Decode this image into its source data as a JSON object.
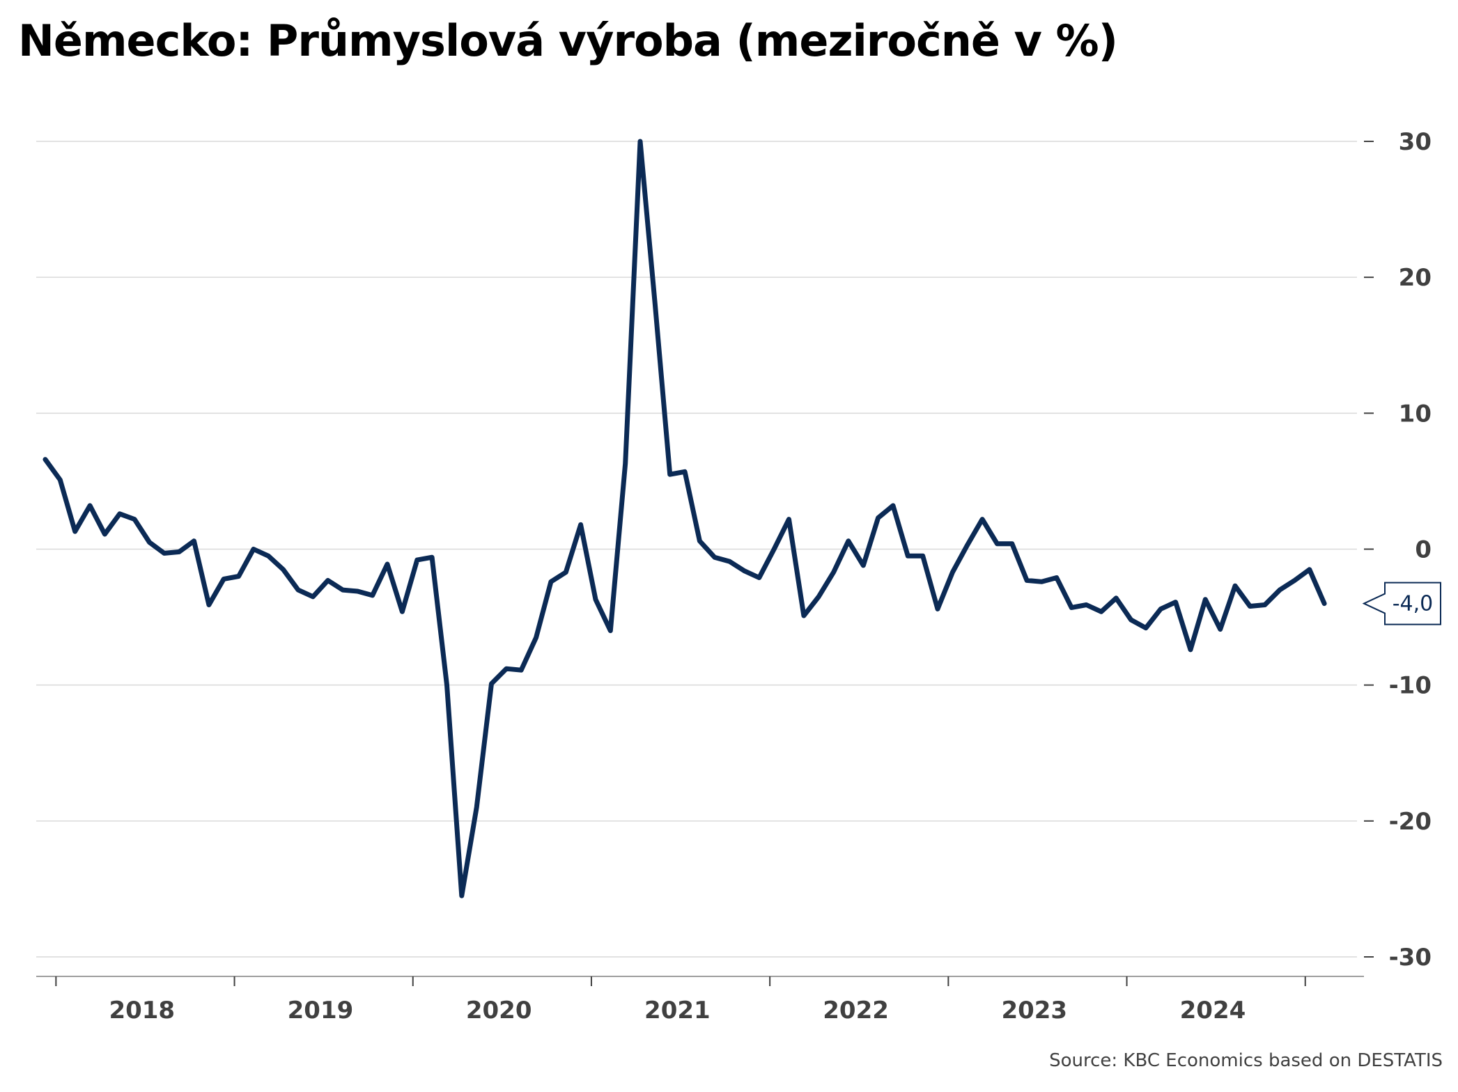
{
  "title": "Německo: Průmyslová výroba (meziročně v %)",
  "source": "Source: KBC Economics based on DESTATIS",
  "chart_data": {
    "type": "line",
    "title": "Německo: Průmyslová výroba (meziročně v %)",
    "xlabel": "",
    "ylabel": "",
    "ylim": [
      -30,
      30
    ],
    "yticks": [
      30,
      20,
      10,
      0,
      -10,
      -20,
      -30
    ],
    "ytick_labels": [
      "30",
      "20",
      "10",
      "0",
      "-10",
      "-20",
      "-30"
    ],
    "x_start": "2017-12",
    "x_end": "2024-10",
    "xtick_labels": [
      "2018",
      "2019",
      "2020",
      "2021",
      "2022",
      "2023",
      "2024"
    ],
    "grid": true,
    "y_axis_position": "right",
    "series_color": "#0b2a55",
    "last_value_label": "-4,0",
    "series": [
      {
        "values": [
          6.6,
          5.1,
          1.3,
          3.2,
          1.1,
          2.6,
          2.2,
          0.5,
          -0.3,
          -0.2,
          0.6,
          -4.1,
          -2.2,
          -2.0,
          0.0,
          -0.5,
          -1.5,
          -3.0,
          -3.5,
          -2.3,
          -3.0,
          -3.1,
          -3.4,
          -1.1,
          -4.6,
          -0.8,
          -0.6,
          -10.0,
          -25.5,
          -19.0,
          -9.9,
          -8.8,
          -8.9,
          -6.5,
          -2.4,
          -1.7,
          1.8,
          -3.7,
          -6.0,
          6.3,
          30.0,
          18.0,
          5.5,
          5.7,
          0.6,
          -0.6,
          -0.9,
          -1.6,
          -2.1,
          0.0,
          2.2,
          -4.9,
          -3.5,
          -1.7,
          0.6,
          -1.2,
          2.3,
          3.2,
          -0.5,
          -0.5,
          -4.4,
          -1.7,
          0.3,
          2.2,
          0.4,
          0.4,
          -2.3,
          -2.4,
          -2.1,
          -4.3,
          -4.1,
          -4.6,
          -3.6,
          -5.2,
          -5.8,
          -4.4,
          -3.9,
          -7.4,
          -3.7,
          -5.9,
          -2.7,
          -4.2,
          -4.1,
          -3.0,
          -2.3,
          -1.5,
          -4.0
        ]
      }
    ]
  }
}
